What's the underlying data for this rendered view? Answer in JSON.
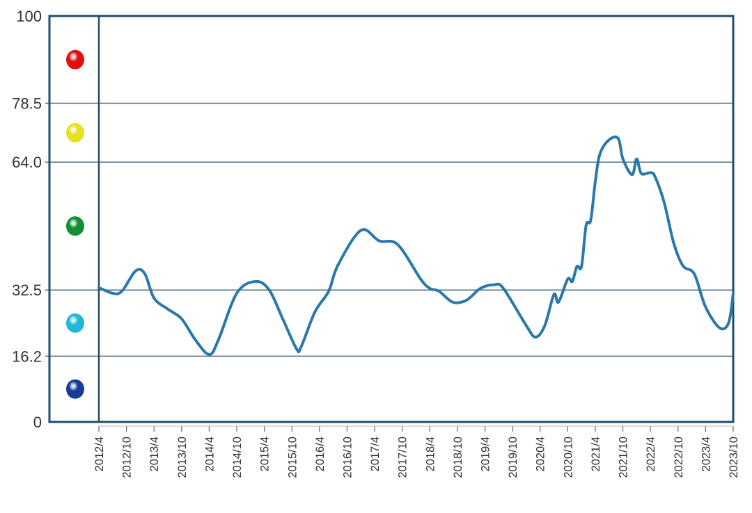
{
  "chart_data": {
    "type": "line",
    "title": "",
    "xlabel": "",
    "ylabel": "",
    "ylim": [
      0,
      100
    ],
    "grid": "horizontal lines at zone thresholds",
    "legend": "none",
    "y_ticks": [
      "100",
      "78.5",
      "64.0",
      "32.5",
      "16.2",
      "0"
    ],
    "y_tick_values": [
      100,
      78.5,
      64.0,
      32.5,
      16.2,
      0
    ],
    "x_ticks": [
      "2012/4",
      "2012/10",
      "2013/4",
      "2013/10",
      "2014/4",
      "2014/10",
      "2015/4",
      "2015/10",
      "2016/4",
      "2016/10",
      "2017/4",
      "2017/10",
      "2018/4",
      "2018/10",
      "2019/4",
      "2019/10",
      "2020/4",
      "2020/10",
      "2021/4",
      "2021/10",
      "2022/4",
      "2022/10",
      "2023/4",
      "2023/10"
    ],
    "zones": [
      {
        "range": [
          78.5,
          100
        ],
        "color": "#e01010"
      },
      {
        "range": [
          64.0,
          78.5
        ],
        "color": "#e8e020"
      },
      {
        "range": [
          32.5,
          64.0
        ],
        "color": "#109030"
      },
      {
        "range": [
          16.2,
          32.5
        ],
        "color": "#20b8d8"
      },
      {
        "range": [
          0,
          16.2
        ],
        "color": "#1a3a98"
      }
    ],
    "line_color": "#2a78aa",
    "frame_color": "#1d4e6b",
    "series": [
      {
        "x": [
          "2012-04",
          "2012-07",
          "2012-09",
          "2012-12",
          "2013-02",
          "2013-04",
          "2013-07",
          "2013-10",
          "2014-01",
          "2014-04",
          "2014-06",
          "2014-10",
          "2015-02",
          "2015-05",
          "2015-08",
          "2015-11",
          "2015-12",
          "2016-03",
          "2016-06",
          "2016-08",
          "2017-01",
          "2017-05",
          "2017-09",
          "2018-02",
          "2018-04",
          "2018-06",
          "2018-09",
          "2018-12",
          "2019-03",
          "2019-06",
          "2019-08",
          "2020-01",
          "2020-03",
          "2020-05",
          "2020-07",
          "2020-08",
          "2020-10",
          "2020-11",
          "2020-12",
          "2021-01",
          "2021-02",
          "2021-03",
          "2021-04",
          "2021-05",
          "2021-07",
          "2021-09",
          "2021-10",
          "2021-12",
          "2022-01",
          "2022-02",
          "2022-04",
          "2022-05",
          "2022-07",
          "2022-09",
          "2022-11",
          "2023-01",
          "2023-02",
          "2023-04",
          "2023-07",
          "2023-09",
          "2023-10"
        ],
        "y": [
          33.1,
          31.7,
          32.2,
          37.2,
          36.5,
          30.5,
          27.8,
          25.4,
          20.2,
          16.6,
          20.2,
          31.7,
          34.6,
          32.6,
          25.4,
          18.0,
          18.5,
          27.1,
          32.2,
          38.6,
          47.2,
          44.6,
          43.7,
          35.2,
          32.9,
          32.2,
          29.5,
          30.0,
          32.9,
          33.8,
          32.9,
          23.7,
          20.9,
          23.7,
          31.4,
          29.5,
          35.2,
          34.6,
          38.3,
          38.3,
          48.4,
          49.7,
          59.2,
          66.0,
          69.5,
          69.8,
          64.8,
          60.9,
          64.8,
          61.2,
          61.4,
          60.4,
          54.0,
          44.3,
          38.6,
          37.2,
          35.2,
          28.3,
          23.2,
          24.4,
          31.7
        ]
      }
    ]
  }
}
